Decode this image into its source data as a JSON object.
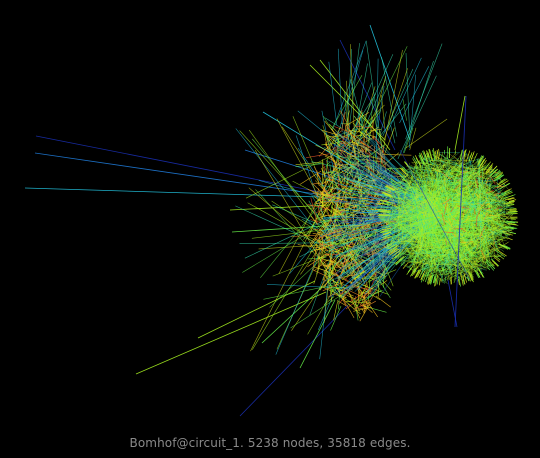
{
  "caption": "Bomhof@circuit_1. 5238 nodes, 35818 edges.",
  "graph": {
    "matrix_group": "Bomhof",
    "matrix_name": "circuit_1",
    "node_count": 5238,
    "edge_count": 35818
  },
  "colors": {
    "background": "#000000",
    "caption": "#8a8a8a",
    "edge_palette": [
      "#1a2fb0",
      "#1f7bd8",
      "#22c4e0",
      "#36e0b0",
      "#66ef48",
      "#a6f020",
      "#d8e81c",
      "#f7c51e",
      "#f59028",
      "#e8562a"
    ]
  }
}
